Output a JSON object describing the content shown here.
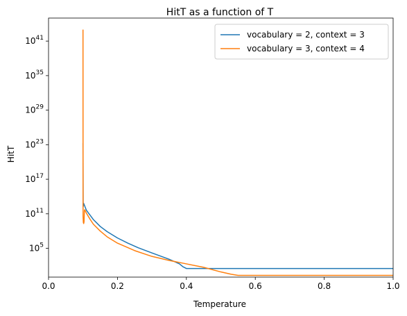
{
  "chart_data": {
    "type": "line",
    "title": "HitT as a function of T",
    "xlabel": "Temperature",
    "ylabel": "HitT",
    "xlim": [
      0.0,
      1.0
    ],
    "ylim_log10": [
      0,
      45
    ],
    "yscale": "log",
    "grid": false,
    "legend_placement": "top-right",
    "x_ticks": [
      {
        "value": 0.0,
        "label": "0.0"
      },
      {
        "value": 0.2,
        "label": "0.2"
      },
      {
        "value": 0.4,
        "label": "0.4"
      },
      {
        "value": 0.6,
        "label": "0.6"
      },
      {
        "value": 0.8,
        "label": "0.8"
      },
      {
        "value": 1.0,
        "label": "1.0"
      }
    ],
    "y_ticks": [
      {
        "log10": 5,
        "base": "10",
        "exp": "5"
      },
      {
        "log10": 11,
        "base": "10",
        "exp": "11"
      },
      {
        "log10": 17,
        "base": "10",
        "exp": "17"
      },
      {
        "log10": 23,
        "base": "10",
        "exp": "23"
      },
      {
        "log10": 29,
        "base": "10",
        "exp": "29"
      },
      {
        "log10": 35,
        "base": "10",
        "exp": "35"
      },
      {
        "log10": 41,
        "base": "10",
        "exp": "41"
      }
    ],
    "series": [
      {
        "name": "vocabulary = 2, context = 3",
        "color": "#1f77b4",
        "points_log10": [
          [
            0.1,
            23.3
          ],
          [
            0.1005,
            12.2
          ],
          [
            0.102,
            12.8
          ],
          [
            0.11,
            11.6
          ],
          [
            0.12,
            10.8
          ],
          [
            0.13,
            10.0
          ],
          [
            0.14,
            9.4
          ],
          [
            0.15,
            8.8
          ],
          [
            0.17,
            7.9
          ],
          [
            0.2,
            6.8
          ],
          [
            0.23,
            5.9
          ],
          [
            0.26,
            5.1
          ],
          [
            0.3,
            4.2
          ],
          [
            0.35,
            3.1
          ],
          [
            0.38,
            2.3
          ],
          [
            0.39,
            1.8
          ],
          [
            0.4,
            1.5
          ],
          [
            0.42,
            1.5
          ],
          [
            0.45,
            1.5
          ],
          [
            0.5,
            1.5
          ],
          [
            0.6,
            1.5
          ],
          [
            0.8,
            1.5
          ],
          [
            1.0,
            1.5
          ]
        ]
      },
      {
        "name": "vocabulary = 3, context = 4",
        "color": "#ff7f0e",
        "points_log10": [
          [
            0.1,
            43.0
          ],
          [
            0.1002,
            10.5
          ],
          [
            0.101,
            9.5
          ],
          [
            0.102,
            9.3
          ],
          [
            0.103,
            9.6
          ],
          [
            0.104,
            11.5
          ],
          [
            0.105,
            11.7
          ],
          [
            0.11,
            11.1
          ],
          [
            0.12,
            10.1
          ],
          [
            0.13,
            9.2
          ],
          [
            0.15,
            8.0
          ],
          [
            0.17,
            7.0
          ],
          [
            0.2,
            5.9
          ],
          [
            0.25,
            4.6
          ],
          [
            0.3,
            3.6
          ],
          [
            0.35,
            2.9
          ],
          [
            0.4,
            2.3
          ],
          [
            0.45,
            1.7
          ],
          [
            0.5,
            0.9
          ],
          [
            0.53,
            0.5
          ],
          [
            0.55,
            0.3
          ],
          [
            0.6,
            0.3
          ],
          [
            0.8,
            0.3
          ],
          [
            1.0,
            0.3
          ]
        ]
      }
    ]
  }
}
